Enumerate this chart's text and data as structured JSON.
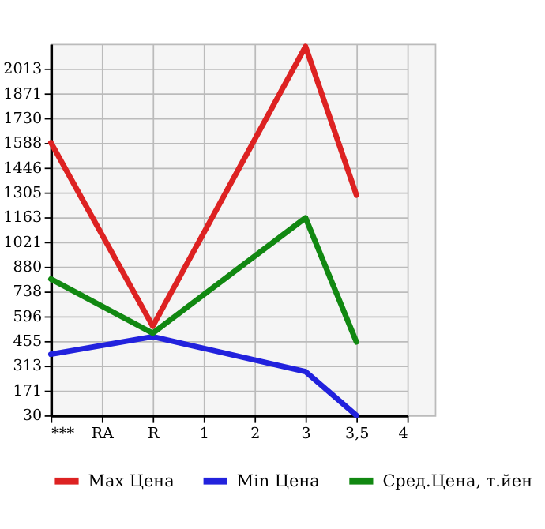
{
  "chart_data": {
    "type": "line",
    "categories": [
      "***",
      "RA",
      "R",
      "1",
      "2",
      "3",
      "3,5",
      "4"
    ],
    "series": [
      {
        "name": "Max Цена",
        "color": "#dd2222",
        "values": [
          1590,
          null,
          540,
          null,
          null,
          2140,
          1290,
          null
        ]
      },
      {
        "name": "Min Цена",
        "color": "#2222dd",
        "values": [
          380,
          null,
          480,
          null,
          null,
          280,
          30,
          null
        ]
      },
      {
        "name": "Сред.Цена, т.йен",
        "color": "#118811",
        "values": [
          810,
          null,
          500,
          null,
          null,
          1160,
          450,
          null
        ]
      }
    ],
    "ylim": [
      30,
      2155
    ],
    "yticks": [
      30,
      171,
      313,
      455,
      596,
      738,
      880,
      1021,
      1163,
      1305,
      1446,
      1588,
      1730,
      1871,
      2013
    ],
    "grid": true,
    "legend": "bottom",
    "marker": "none",
    "line_style": "solid"
  }
}
